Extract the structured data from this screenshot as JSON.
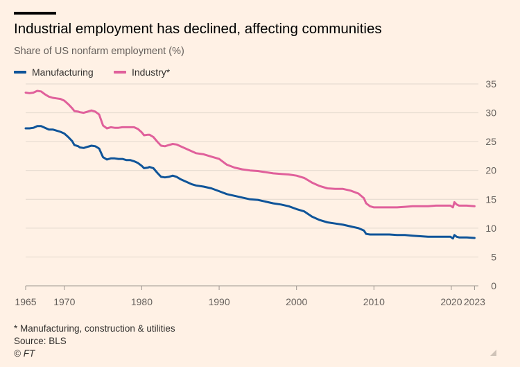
{
  "header": {
    "title": "Industrial employment has declined, affecting communities",
    "subtitle": "Share of US nonfarm employment (%)"
  },
  "footer": {
    "note": "* Manufacturing, construction & utilities",
    "source": "Source: BLS",
    "credit": "© FT"
  },
  "colors": {
    "background": "#fff1e5",
    "manufacturing": "#0f5499",
    "industry": "#e0609b",
    "grid": "#e2d8cd",
    "axis_text": "#66605c"
  },
  "chart_data": {
    "type": "line",
    "title": "Industrial employment has declined, affecting communities",
    "ylabel": "Share of US nonfarm employment (%)",
    "xlabel": "",
    "xlim": [
      1965,
      2023.5
    ],
    "ylim": [
      0,
      35
    ],
    "y_ticks": [
      0,
      5,
      10,
      15,
      20,
      25,
      30,
      35
    ],
    "x_ticks": [
      {
        "value": 1965,
        "label": "1965"
      },
      {
        "value": 1970,
        "label": "1970"
      },
      {
        "value": 1980,
        "label": "1980"
      },
      {
        "value": 1990,
        "label": "1990"
      },
      {
        "value": 2000,
        "label": "2000"
      },
      {
        "value": 2010,
        "label": "2010"
      },
      {
        "value": 2020,
        "label": "2020"
      },
      {
        "value": 2023,
        "label": "2023"
      }
    ],
    "y_axis_side": "right",
    "grid": true,
    "legend_position": "top-left",
    "series": [
      {
        "name": "Manufacturing",
        "color": "#0f5499",
        "points": [
          [
            1965,
            27.3
          ],
          [
            1965.5,
            27.3
          ],
          [
            1966,
            27.4
          ],
          [
            1966.5,
            27.7
          ],
          [
            1967,
            27.7
          ],
          [
            1967.5,
            27.4
          ],
          [
            1968,
            27.1
          ],
          [
            1968.5,
            27.1
          ],
          [
            1969,
            26.9
          ],
          [
            1969.5,
            26.7
          ],
          [
            1970,
            26.4
          ],
          [
            1970.5,
            25.8
          ],
          [
            1971,
            25.1
          ],
          [
            1971.3,
            24.4
          ],
          [
            1971.8,
            24.2
          ],
          [
            1972,
            24.0
          ],
          [
            1972.5,
            23.9
          ],
          [
            1973,
            24.1
          ],
          [
            1973.5,
            24.3
          ],
          [
            1974,
            24.2
          ],
          [
            1974.5,
            23.8
          ],
          [
            1975,
            22.3
          ],
          [
            1975.5,
            21.9
          ],
          [
            1976,
            22.1
          ],
          [
            1976.5,
            22.1
          ],
          [
            1977,
            22.0
          ],
          [
            1977.5,
            22.0
          ],
          [
            1978,
            21.8
          ],
          [
            1978.5,
            21.8
          ],
          [
            1979,
            21.6
          ],
          [
            1979.5,
            21.3
          ],
          [
            1980,
            20.8
          ],
          [
            1980.3,
            20.4
          ],
          [
            1980.8,
            20.5
          ],
          [
            1981,
            20.6
          ],
          [
            1981.5,
            20.4
          ],
          [
            1982,
            19.6
          ],
          [
            1982.5,
            18.9
          ],
          [
            1983,
            18.8
          ],
          [
            1983.5,
            18.9
          ],
          [
            1984,
            19.1
          ],
          [
            1984.5,
            18.9
          ],
          [
            1985,
            18.5
          ],
          [
            1985.5,
            18.2
          ],
          [
            1986,
            17.9
          ],
          [
            1986.5,
            17.6
          ],
          [
            1987,
            17.4
          ],
          [
            1988,
            17.2
          ],
          [
            1989,
            16.9
          ],
          [
            1990,
            16.4
          ],
          [
            1991,
            15.9
          ],
          [
            1992,
            15.6
          ],
          [
            1993,
            15.3
          ],
          [
            1994,
            15.0
          ],
          [
            1995,
            14.9
          ],
          [
            1996,
            14.6
          ],
          [
            1997,
            14.3
          ],
          [
            1998,
            14.1
          ],
          [
            1999,
            13.8
          ],
          [
            2000,
            13.3
          ],
          [
            2001,
            12.9
          ],
          [
            2002,
            12.0
          ],
          [
            2003,
            11.4
          ],
          [
            2004,
            11.0
          ],
          [
            2005,
            10.8
          ],
          [
            2006,
            10.6
          ],
          [
            2007,
            10.3
          ],
          [
            2008,
            10.0
          ],
          [
            2008.7,
            9.6
          ],
          [
            2009,
            9.0
          ],
          [
            2009.5,
            8.9
          ],
          [
            2010,
            8.9
          ],
          [
            2011,
            8.9
          ],
          [
            2012,
            8.9
          ],
          [
            2013,
            8.8
          ],
          [
            2014,
            8.8
          ],
          [
            2015,
            8.7
          ],
          [
            2016,
            8.6
          ],
          [
            2017,
            8.5
          ],
          [
            2018,
            8.5
          ],
          [
            2019,
            8.5
          ],
          [
            2019.9,
            8.5
          ],
          [
            2020.2,
            8.2
          ],
          [
            2020.4,
            8.8
          ],
          [
            2020.7,
            8.5
          ],
          [
            2021,
            8.4
          ],
          [
            2022,
            8.4
          ],
          [
            2023,
            8.3
          ]
        ]
      },
      {
        "name": "Industry*",
        "color": "#e0609b",
        "points": [
          [
            1965,
            33.5
          ],
          [
            1965.5,
            33.4
          ],
          [
            1966,
            33.5
          ],
          [
            1966.5,
            33.8
          ],
          [
            1967,
            33.7
          ],
          [
            1967.5,
            33.2
          ],
          [
            1968,
            32.8
          ],
          [
            1968.5,
            32.6
          ],
          [
            1969,
            32.5
          ],
          [
            1969.5,
            32.4
          ],
          [
            1970,
            32.1
          ],
          [
            1970.5,
            31.5
          ],
          [
            1971,
            30.8
          ],
          [
            1971.3,
            30.3
          ],
          [
            1971.8,
            30.2
          ],
          [
            1972,
            30.1
          ],
          [
            1972.5,
            30.0
          ],
          [
            1973,
            30.2
          ],
          [
            1973.5,
            30.4
          ],
          [
            1974,
            30.2
          ],
          [
            1974.5,
            29.7
          ],
          [
            1975,
            27.8
          ],
          [
            1975.5,
            27.3
          ],
          [
            1976,
            27.5
          ],
          [
            1976.5,
            27.4
          ],
          [
            1977,
            27.4
          ],
          [
            1977.5,
            27.5
          ],
          [
            1978,
            27.5
          ],
          [
            1978.5,
            27.5
          ],
          [
            1979,
            27.5
          ],
          [
            1979.5,
            27.2
          ],
          [
            1980,
            26.6
          ],
          [
            1980.3,
            26.1
          ],
          [
            1980.8,
            26.2
          ],
          [
            1981,
            26.2
          ],
          [
            1981.5,
            25.8
          ],
          [
            1982,
            25.0
          ],
          [
            1982.5,
            24.3
          ],
          [
            1983,
            24.2
          ],
          [
            1983.5,
            24.4
          ],
          [
            1984,
            24.6
          ],
          [
            1984.5,
            24.5
          ],
          [
            1985,
            24.2
          ],
          [
            1985.5,
            23.9
          ],
          [
            1986,
            23.6
          ],
          [
            1986.5,
            23.3
          ],
          [
            1987,
            23.0
          ],
          [
            1988,
            22.8
          ],
          [
            1989,
            22.4
          ],
          [
            1990,
            22.0
          ],
          [
            1991,
            21.0
          ],
          [
            1992,
            20.5
          ],
          [
            1993,
            20.2
          ],
          [
            1994,
            20.0
          ],
          [
            1995,
            19.9
          ],
          [
            1996,
            19.7
          ],
          [
            1997,
            19.5
          ],
          [
            1998,
            19.4
          ],
          [
            1999,
            19.3
          ],
          [
            2000,
            19.1
          ],
          [
            2001,
            18.7
          ],
          [
            2002,
            17.9
          ],
          [
            2003,
            17.3
          ],
          [
            2004,
            16.9
          ],
          [
            2005,
            16.8
          ],
          [
            2006,
            16.8
          ],
          [
            2007,
            16.5
          ],
          [
            2008,
            16.0
          ],
          [
            2008.7,
            15.2
          ],
          [
            2009,
            14.3
          ],
          [
            2009.5,
            13.8
          ],
          [
            2010,
            13.6
          ],
          [
            2011,
            13.6
          ],
          [
            2012,
            13.6
          ],
          [
            2013,
            13.6
          ],
          [
            2014,
            13.7
          ],
          [
            2015,
            13.8
          ],
          [
            2016,
            13.8
          ],
          [
            2017,
            13.8
          ],
          [
            2018,
            13.9
          ],
          [
            2019,
            13.9
          ],
          [
            2019.9,
            13.9
          ],
          [
            2020.2,
            13.6
          ],
          [
            2020.4,
            14.5
          ],
          [
            2020.7,
            14.1
          ],
          [
            2021,
            13.9
          ],
          [
            2022,
            13.9
          ],
          [
            2023,
            13.8
          ]
        ]
      }
    ]
  }
}
